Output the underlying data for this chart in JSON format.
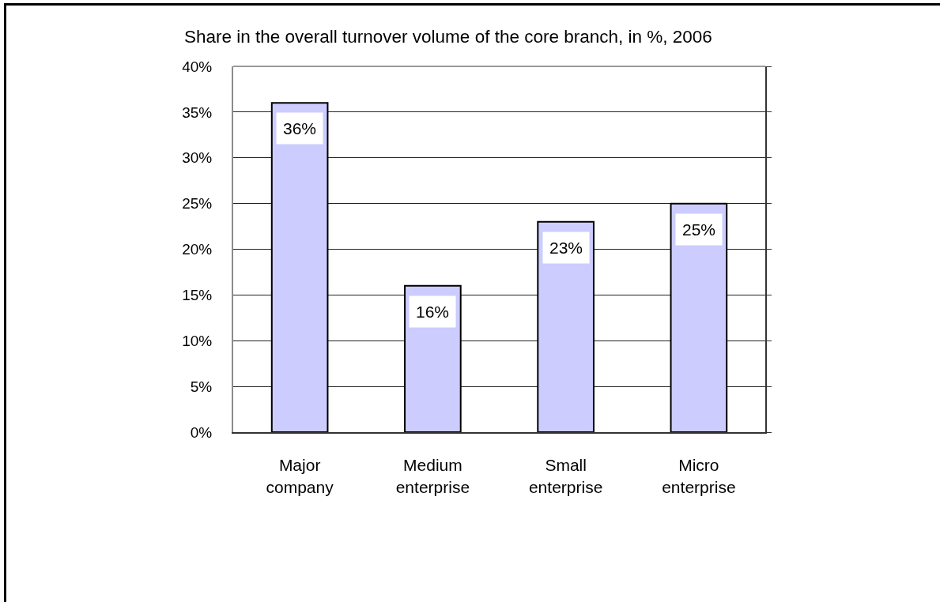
{
  "chart_data": {
    "type": "bar",
    "title": "Share in the overall turnover volume of the core branch, in %, 2006",
    "categories": [
      "Major company",
      "Medium enterprise",
      "Small enterprise",
      "Micro enterprise"
    ],
    "values": [
      36,
      16,
      23,
      25
    ],
    "color": "#ccccff",
    "value_labels": [
      "36%",
      "16%",
      "23%",
      "25%"
    ],
    "ylim": [
      0,
      40
    ],
    "yticks": [
      {
        "value": 0,
        "label": "0%"
      },
      {
        "value": 5,
        "label": "5%"
      },
      {
        "value": 10,
        "label": "10%"
      },
      {
        "value": 15,
        "label": "15%"
      },
      {
        "value": 20,
        "label": "20%"
      },
      {
        "value": 25,
        "label": "25%"
      },
      {
        "value": 30,
        "label": "30%"
      },
      {
        "value": 35,
        "label": "35%"
      },
      {
        "value": 40,
        "label": "40%"
      }
    ],
    "grid": "y"
  }
}
